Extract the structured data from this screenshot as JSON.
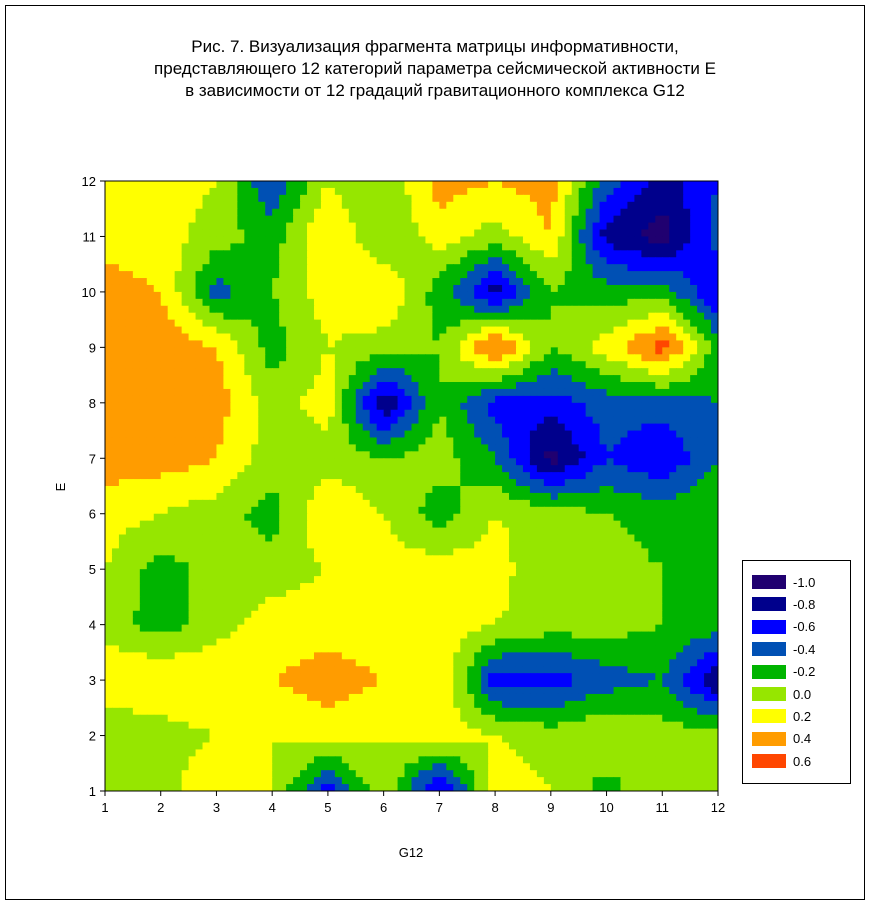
{
  "chart_data": {
    "type": "heatmap",
    "title_lines": [
      "Рис. 7. Визуализация фрагмента матрицы информативности,",
      "представляющего 12 категорий параметра сейсмической активности E",
      "в зависимости от 12 градаций гравитационного комплекса G12"
    ],
    "xlabel": "G12",
    "ylabel": "E",
    "x": [
      1,
      2,
      3,
      4,
      5,
      6,
      7,
      8,
      9,
      10,
      11,
      12
    ],
    "y": [
      1,
      2,
      3,
      4,
      5,
      6,
      7,
      8,
      9,
      10,
      11,
      12
    ],
    "xlim": [
      1,
      12
    ],
    "ylim": [
      1,
      12
    ],
    "x_ticks": [
      "1",
      "2",
      "3",
      "4",
      "5",
      "6",
      "7",
      "8",
      "9",
      "10",
      "11",
      "12"
    ],
    "y_ticks": [
      "1",
      "2",
      "3",
      "4",
      "5",
      "6",
      "7",
      "8",
      "9",
      "10",
      "11",
      "12"
    ],
    "z_rows_from_E1_to_E12": [
      [
        0.1,
        0.0,
        0.3,
        0.1,
        -0.6,
        0.1,
        -0.8,
        0.2,
        0.1,
        -0.2,
        0.1,
        0.1
      ],
      [
        -0.1,
        0.0,
        0.1,
        0.1,
        0.2,
        0.1,
        0.2,
        0.1,
        0.0,
        0.1,
        0.0,
        0.0
      ],
      [
        0.3,
        0.3,
        0.3,
        0.3,
        0.4,
        0.3,
        0.3,
        -0.6,
        -0.6,
        -0.4,
        -0.3,
        -0.9
      ],
      [
        0.0,
        -0.2,
        0.0,
        0.2,
        0.2,
        0.2,
        0.2,
        0.1,
        0.0,
        0.0,
        -0.1,
        -0.2
      ],
      [
        0.1,
        -0.2,
        0.0,
        0.0,
        0.1,
        0.2,
        0.2,
        0.2,
        -0.1,
        0.0,
        -0.1,
        -0.1
      ],
      [
        0.2,
        0.1,
        0.0,
        -0.2,
        0.3,
        0.1,
        -0.2,
        0.1,
        0.0,
        -0.1,
        -0.2,
        -0.1
      ],
      [
        0.4,
        0.4,
        0.3,
        0.0,
        0.0,
        -0.1,
        0.0,
        -0.3,
        -1.0,
        -0.5,
        -0.7,
        -0.3
      ],
      [
        0.3,
        0.3,
        0.4,
        0.0,
        0.2,
        -0.9,
        -0.1,
        -0.6,
        -0.6,
        -0.4,
        -0.4,
        -0.3
      ],
      [
        0.3,
        0.5,
        0.3,
        -0.2,
        0.1,
        0.0,
        -0.1,
        0.6,
        -0.1,
        0.2,
        0.6,
        -0.2
      ],
      [
        0.4,
        0.3,
        -0.4,
        -0.1,
        0.2,
        0.3,
        -0.2,
        -0.8,
        -0.1,
        -0.2,
        -0.2,
        -0.7
      ],
      [
        0.2,
        0.2,
        0.0,
        -0.2,
        0.3,
        -0.1,
        0.2,
        0.0,
        0.3,
        -0.8,
        -1.0,
        -0.4
      ],
      [
        0.3,
        0.2,
        0.1,
        -0.5,
        0.1,
        -0.1,
        0.4,
        0.3,
        0.4,
        -0.4,
        -0.8,
        -0.5
      ]
    ],
    "levels": [
      -1.0,
      -0.8,
      -0.6,
      -0.4,
      -0.2,
      0.0,
      0.2,
      0.4,
      0.6
    ],
    "level_colors": [
      "#200070",
      "#00008c",
      "#0000ff",
      "#0050b4",
      "#00b400",
      "#96e600",
      "#ffff00",
      "#ff9c00",
      "#ff4600"
    ],
    "legend": {
      "placement": "right",
      "entries": [
        "-1.0",
        "-0.8",
        "-0.6",
        "-0.4",
        "-0.2",
        "0.0",
        "0.2",
        "0.4",
        "0.6"
      ]
    },
    "grid": false
  }
}
